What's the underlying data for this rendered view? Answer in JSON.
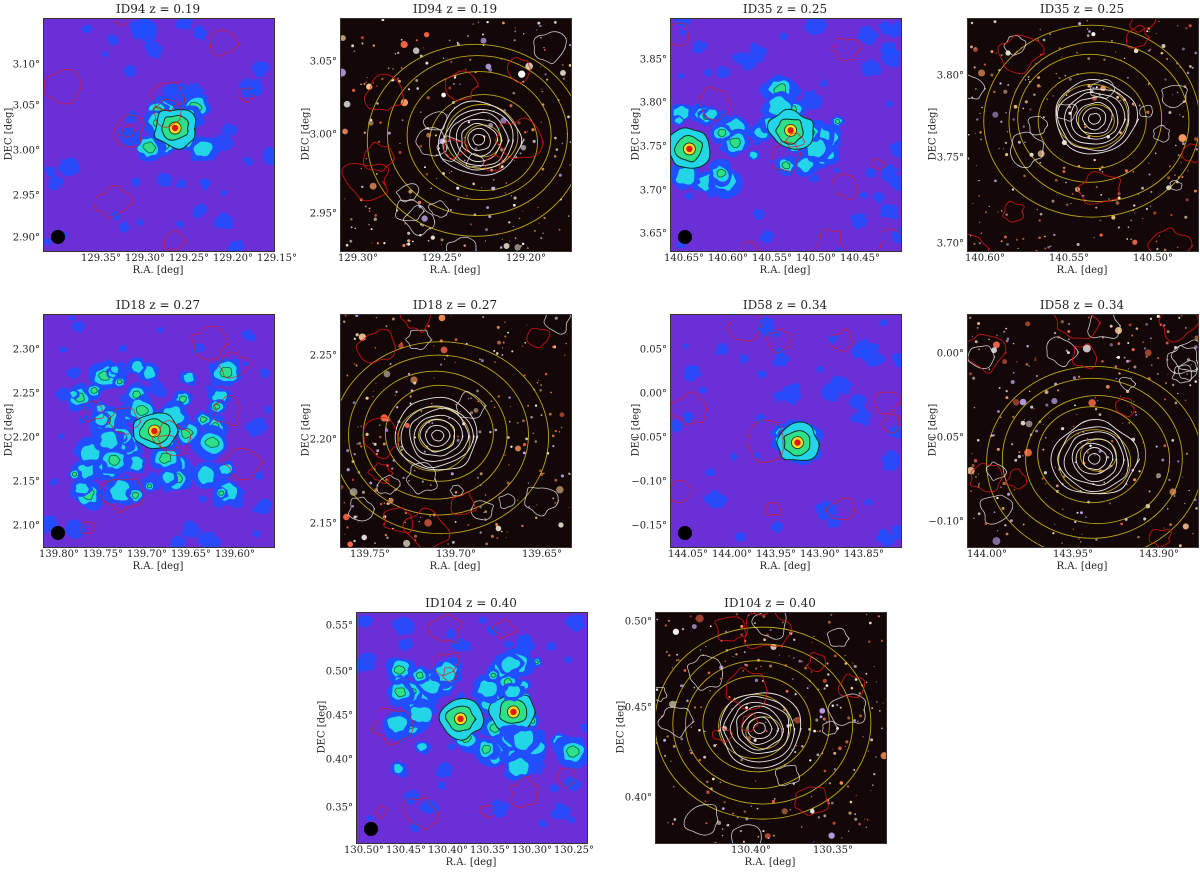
{
  "axis_labels": {
    "x": "R.A. [deg]",
    "y": "DEC [deg]"
  },
  "panels": [
    {
      "key": "p1",
      "title": "ID94   z = 0.19",
      "kind": "xray",
      "xticks": [
        "129.35°",
        "129.30°",
        "129.25°",
        "129.20°",
        "129.15°"
      ],
      "yticks": [
        "3.10°",
        "3.05°",
        "3.00°",
        "2.95°",
        "2.90°"
      ]
    },
    {
      "key": "p2",
      "title": "ID94   z = 0.19",
      "kind": "optical",
      "xticks": [
        "129.30°",
        "129.25°",
        "129.20°"
      ],
      "yticks": [
        "3.05°",
        "3.00°",
        "2.95°"
      ]
    },
    {
      "key": "p3",
      "title": "ID35   z = 0.25",
      "kind": "xray",
      "xticks": [
        "140.65°",
        "140.60°",
        "140.55°",
        "140.50°",
        "140.45°"
      ],
      "yticks": [
        "3.85°",
        "3.80°",
        "3.75°",
        "3.70°",
        "3.65°"
      ]
    },
    {
      "key": "p4",
      "title": "ID35   z = 0.25",
      "kind": "optical",
      "xticks": [
        "140.60°",
        "140.55°",
        "140.50°"
      ],
      "yticks": [
        "3.80°",
        "3.75°",
        "3.70°"
      ]
    },
    {
      "key": "p5",
      "title": "ID18   z = 0.27",
      "kind": "xray",
      "xticks": [
        "139.80°",
        "139.75°",
        "139.70°",
        "139.65°",
        "139.60°"
      ],
      "yticks": [
        "2.30°",
        "2.25°",
        "2.20°",
        "2.15°",
        "2.10°"
      ]
    },
    {
      "key": "p6",
      "title": "ID18   z = 0.27",
      "kind": "optical",
      "xticks": [
        "139.75°",
        "139.70°",
        "139.65°"
      ],
      "yticks": [
        "2.25°",
        "2.20°",
        "2.15°"
      ]
    },
    {
      "key": "p7",
      "title": "ID58   z = 0.34",
      "kind": "xray",
      "xticks": [
        "144.05°",
        "144.00°",
        "143.95°",
        "143.90°",
        "143.85°"
      ],
      "yticks": [
        "0.05°",
        "0.00°",
        "−0.05°",
        "−0.10°",
        "−0.15°"
      ]
    },
    {
      "key": "p8",
      "title": "ID58   z = 0.34",
      "kind": "optical",
      "xticks": [
        "144.00°",
        "143.95°",
        "143.90°"
      ],
      "yticks": [
        "0.00°",
        "−0.05°",
        "−0.10°"
      ]
    },
    {
      "key": "p9",
      "title": "ID104   z = 0.40",
      "kind": "xray",
      "xticks": [
        "130.50°",
        "130.45°",
        "130.40°",
        "130.35°",
        "130.30°",
        "130.25°"
      ],
      "yticks": [
        "0.55°",
        "0.50°",
        "0.45°",
        "0.40°",
        "0.35°"
      ]
    },
    {
      "key": "p10",
      "title": "ID104   z = 0.40",
      "kind": "optical",
      "xticks": [
        "130.40°",
        "130.35°"
      ],
      "yticks": [
        "0.50°",
        "0.45°",
        "0.40°"
      ]
    }
  ],
  "colors": {
    "xray_background": "#6b2fd8",
    "xray_blue": "#1f4fff",
    "xray_cyan": "#22d6e8",
    "xray_green": "#2fe08a",
    "xray_peak": "#e01818",
    "optical_background": "#140707",
    "contour_red": "#e01414",
    "contour_white": "#e8e8e8",
    "contour_yellow": "#d8c21a"
  }
}
